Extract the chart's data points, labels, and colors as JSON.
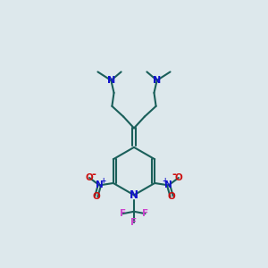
{
  "bg_color": "#dde8ec",
  "bond_color": "#1a5f5a",
  "N_color": "#1111cc",
  "O_color": "#cc1111",
  "F_color": "#cc44cc",
  "lw": 1.5,
  "fs": 7.5,
  "xlim": [
    0,
    10
  ],
  "ylim": [
    0,
    10
  ]
}
